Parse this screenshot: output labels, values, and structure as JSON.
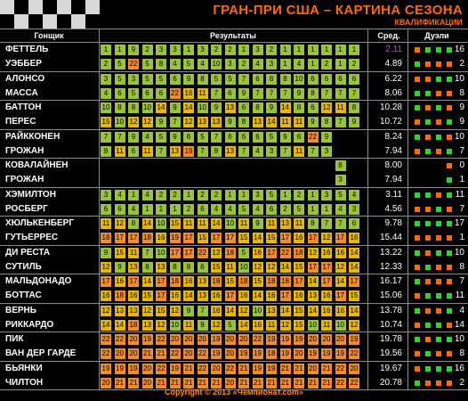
{
  "header": {
    "title": "ГРАН-ПРИ США – КАРТИНА СЕЗОНА",
    "subtitle": "КВАЛИФИКАЦИИ"
  },
  "columns": {
    "driver": "Гонщик",
    "results": "Результаты",
    "avg": "Сред.",
    "duels": "Дуэли"
  },
  "colors": {
    "gold": "#e8b800",
    "green": "#9bc33a",
    "orange": "#f28c28",
    "highlight": "#b04ad6",
    "duel_green": "#2fd42f",
    "duel_orange": "#ff6a00"
  },
  "teams": [
    {
      "drivers": [
        {
          "name": "ФЕТТЕЛЬ",
          "avg": "2.11",
          "avg_highlight": true,
          "duel": 16,
          "duel_marks": [
            "orange",
            "green",
            "green",
            "green"
          ],
          "results": [
            1,
            1,
            9,
            2,
            3,
            3,
            1,
            3,
            2,
            2,
            1,
            3,
            2,
            1,
            1,
            1,
            1,
            1,
            1
          ]
        },
        {
          "name": "УЭББЕР",
          "avg": "4.89",
          "duel": 2,
          "duel_marks": [
            "green",
            "orange",
            "orange",
            "orange"
          ],
          "results": [
            2,
            5,
            22,
            5,
            8,
            4,
            5,
            4,
            10,
            3,
            2,
            4,
            3,
            1,
            4,
            1,
            2,
            1,
            2
          ]
        }
      ]
    },
    {
      "drivers": [
        {
          "name": "АЛОНСО",
          "avg": "6.22",
          "duel": 10,
          "duel_marks": [
            "orange",
            "orange",
            "green",
            "green"
          ],
          "results": [
            3,
            5,
            3,
            5,
            5,
            6,
            9,
            8,
            5,
            5,
            7,
            6,
            8,
            8,
            10,
            6,
            6,
            6,
            6
          ]
        },
        {
          "name": "МАССА",
          "avg": "8.06",
          "duel": 8,
          "duel_marks": [
            "green",
            "green",
            "orange",
            "orange"
          ],
          "results": [
            4,
            6,
            5,
            6,
            6,
            22,
            16,
            11,
            7,
            6,
            9,
            7,
            7,
            7,
            9,
            8,
            7,
            7,
            7
          ]
        }
      ]
    },
    {
      "drivers": [
        {
          "name": "БАТТОН",
          "avg": "10.28",
          "duel": 9,
          "duel_marks": [
            "green",
            "orange",
            "green",
            "orange"
          ],
          "results": [
            10,
            8,
            8,
            10,
            14,
            9,
            14,
            10,
            9,
            13,
            6,
            8,
            9,
            14,
            8,
            6,
            12,
            11,
            8
          ]
        },
        {
          "name": "ПЕРЕС",
          "avg": "10.72",
          "duel": 9,
          "duel_marks": [
            "orange",
            "green",
            "orange",
            "green"
          ],
          "results": [
            15,
            10,
            12,
            12,
            9,
            7,
            12,
            13,
            13,
            9,
            8,
            13,
            14,
            11,
            11,
            9,
            8,
            7,
            9
          ]
        }
      ]
    },
    {
      "drivers": [
        {
          "name": "РАЙККОНЕН",
          "avg": "8.24",
          "duel": 10,
          "duel_marks": [
            "green",
            "orange",
            "green",
            "orange"
          ],
          "results": [
            7,
            7,
            9,
            4,
            5,
            9,
            6,
            5,
            7,
            6,
            6,
            6,
            5,
            9,
            6,
            22,
            9
          ]
        },
        {
          "name": "ГРОЖАН",
          "avg": "7.94",
          "duel": 7,
          "duel_marks": [
            "orange",
            "green",
            "orange",
            "green"
          ],
          "results": [
            8,
            11,
            6,
            11,
            7,
            13,
            19,
            7,
            8,
            13,
            7,
            4,
            3,
            7,
            11,
            7,
            3
          ]
        }
      ]
    },
    {
      "drivers": [
        {
          "name": "КОВАЛАЙНЕН",
          "avg": "8.00",
          "duel": 0,
          "duel_marks": [
            "orange"
          ],
          "results": [
            null,
            null,
            null,
            null,
            null,
            null,
            null,
            null,
            null,
            null,
            null,
            null,
            null,
            null,
            null,
            null,
            null,
            8
          ]
        },
        {
          "name": "ГРОЖАН",
          "avg": "7.94",
          "duel": 1,
          "duel_marks": [
            "green"
          ],
          "results": [
            null,
            null,
            null,
            null,
            null,
            null,
            null,
            null,
            null,
            null,
            null,
            null,
            null,
            null,
            null,
            null,
            null,
            3
          ]
        }
      ]
    },
    {
      "drivers": [
        {
          "name": "ХЭМИЛТОН",
          "avg": "3.11",
          "duel": 11,
          "duel_marks": [
            "green",
            "green",
            "orange",
            "green"
          ],
          "results": [
            3,
            4,
            1,
            4,
            2,
            2,
            1,
            2,
            2,
            1,
            1,
            3,
            5,
            1,
            2,
            1,
            3,
            5,
            4
          ]
        },
        {
          "name": "РОСБЕРГ",
          "avg": "4.56",
          "duel": 7,
          "duel_marks": [
            "orange",
            "orange",
            "green",
            "orange"
          ],
          "results": [
            6,
            6,
            4,
            1,
            1,
            1,
            2,
            6,
            4,
            4,
            5,
            4,
            6,
            2,
            5,
            1,
            1,
            4,
            3
          ]
        }
      ]
    },
    {
      "drivers": [
        {
          "name": "ХЮЛЬКЕНБЕРГ",
          "avg": "9.78",
          "duel": 17,
          "duel_marks": [
            "green",
            "green",
            "green",
            "green"
          ],
          "results": [
            11,
            12,
            8,
            14,
            10,
            15,
            11,
            11,
            14,
            10,
            11,
            9,
            11,
            13,
            11,
            8,
            7,
            7,
            6
          ]
        },
        {
          "name": "ГУТЬЕРРЕС",
          "avg": "15.44",
          "duel": 1,
          "duel_marks": [
            "orange",
            "orange",
            "orange",
            "orange"
          ],
          "results": [
            18,
            17,
            17,
            18,
            16,
            19,
            17,
            15,
            17,
            17,
            15,
            14,
            15,
            17,
            16,
            17,
            12,
            17,
            16
          ]
        }
      ]
    },
    {
      "drivers": [
        {
          "name": "ДИ РЕСТА",
          "avg": "13.22",
          "duel": 10,
          "duel_marks": [
            "green",
            "orange",
            "green",
            "green"
          ],
          "results": [
            9,
            15,
            11,
            7,
            10,
            17,
            17,
            22,
            12,
            18,
            5,
            16,
            17,
            22,
            18,
            12,
            16,
            16,
            14
          ]
        },
        {
          "name": "СУТИЛЬ",
          "avg": "12.33",
          "duel": 8,
          "duel_marks": [
            "orange",
            "green",
            "orange",
            "orange"
          ],
          "results": [
            12,
            9,
            13,
            8,
            13,
            8,
            8,
            6,
            15,
            11,
            10,
            12,
            12,
            14,
            15,
            17,
            17,
            12,
            14
          ]
        }
      ]
    },
    {
      "drivers": [
        {
          "name": "МАЛЬДОНАДО",
          "avg": "16.17",
          "duel": 7,
          "duel_marks": [
            "green",
            "orange",
            "orange",
            "orange"
          ],
          "results": [
            17,
            16,
            17,
            14,
            17,
            18,
            16,
            13,
            18,
            15,
            18,
            15,
            18,
            18,
            17,
            14,
            17,
            14,
            17
          ]
        },
        {
          "name": "БОТТАС",
          "avg": "15.06",
          "duel": 11,
          "duel_marks": [
            "orange",
            "green",
            "green",
            "green"
          ],
          "results": [
            16,
            18,
            16,
            15,
            17,
            16,
            14,
            13,
            16,
            17,
            16,
            14,
            16,
            17,
            16,
            13,
            16,
            17,
            15
          ]
        }
      ]
    },
    {
      "drivers": [
        {
          "name": "ВЕРНЬ",
          "avg": "13.78",
          "duel": 4,
          "duel_marks": [
            "green",
            "orange",
            "orange",
            "green"
          ],
          "results": [
            12,
            13,
            13,
            12,
            15,
            12,
            9,
            7,
            16,
            14,
            12,
            10,
            13,
            14,
            15,
            14,
            16,
            16,
            14
          ]
        },
        {
          "name": "РИККАРДО",
          "avg": "10.74",
          "duel": 14,
          "duel_marks": [
            "orange",
            "green",
            "green",
            "orange"
          ],
          "results": [
            14,
            14,
            18,
            13,
            12,
            10,
            11,
            9,
            12,
            5,
            14,
            16,
            11,
            12,
            15,
            10,
            11,
            10,
            12
          ]
        }
      ]
    },
    {
      "drivers": [
        {
          "name": "ПИК",
          "avg": "19.78",
          "duel": 10,
          "duel_marks": [
            "green",
            "orange",
            "green",
            "green"
          ],
          "results": [
            22,
            22,
            20,
            19,
            22,
            20,
            20,
            20,
            19,
            20,
            20,
            22,
            19,
            19,
            19,
            20,
            20,
            20,
            19
          ]
        },
        {
          "name": "ВАН ДЕР ГАРДЕ",
          "avg": "19.56",
          "duel": 8,
          "duel_marks": [
            "orange",
            "green",
            "orange",
            "orange"
          ],
          "results": [
            22,
            20,
            20,
            21,
            21,
            22,
            20,
            22,
            19,
            20,
            19,
            19,
            18,
            19,
            20,
            19,
            19,
            19,
            22
          ]
        }
      ]
    },
    {
      "drivers": [
        {
          "name": "БЬЯНКИ",
          "avg": "19.67",
          "duel": 16,
          "duel_marks": [
            "orange",
            "green",
            "green",
            "green"
          ],
          "results": [
            19,
            19,
            19,
            20,
            22,
            19,
            21,
            22,
            20,
            22,
            21,
            19,
            19,
            21,
            21,
            20,
            21,
            22,
            20
          ]
        },
        {
          "name": "ЧИЛТОН",
          "avg": "20.78",
          "duel": 2,
          "duel_marks": [
            "green",
            "orange",
            "orange",
            "orange"
          ],
          "results": [
            20,
            21,
            21,
            20,
            21,
            21,
            21,
            21,
            21,
            20,
            21,
            21,
            21,
            21,
            21,
            21,
            21,
            22,
            22
          ]
        }
      ]
    }
  ],
  "footer": {
    "copyright": "Copyright © 2013 «Чемпионат.com»"
  }
}
